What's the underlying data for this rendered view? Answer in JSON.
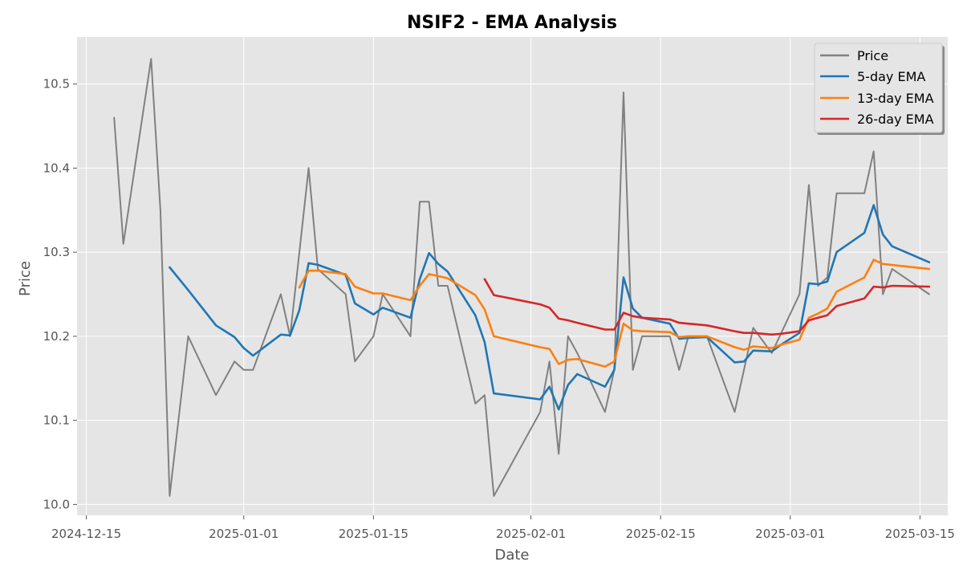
{
  "chart_data": {
    "type": "line",
    "title": "NSIF2 - EMA Analysis",
    "xlabel": "Date",
    "ylabel": "Price",
    "xlim": [
      "2024-12-14",
      "2025-03-18"
    ],
    "ylim": [
      9.987,
      10.556
    ],
    "grid": true,
    "legend_placement": "top-right",
    "x_ticks": [
      "2024-12-15",
      "2025-01-01",
      "2025-01-15",
      "2025-02-01",
      "2025-02-15",
      "2025-03-01",
      "2025-03-15"
    ],
    "y_ticks": [
      "10.0",
      "10.1",
      "10.2",
      "10.3",
      "10.4",
      "10.5"
    ],
    "series": [
      {
        "name": "Price",
        "color": "#808080",
        "points": [
          [
            "2024-12-18",
            10.46
          ],
          [
            "2024-12-19",
            10.31
          ],
          [
            "2024-12-22",
            10.53
          ],
          [
            "2024-12-23",
            10.35
          ],
          [
            "2024-12-24",
            10.01
          ],
          [
            "2024-12-26",
            10.2
          ],
          [
            "2024-12-29",
            10.13
          ],
          [
            "2024-12-31",
            10.17
          ],
          [
            "2025-01-01",
            10.16
          ],
          [
            "2025-01-02",
            10.16
          ],
          [
            "2025-01-05",
            10.25
          ],
          [
            "2025-01-06",
            10.2
          ],
          [
            "2025-01-08",
            10.4
          ],
          [
            "2025-01-09",
            10.28
          ],
          [
            "2025-01-12",
            10.25
          ],
          [
            "2025-01-13",
            10.17
          ],
          [
            "2025-01-15",
            10.2
          ],
          [
            "2025-01-16",
            10.25
          ],
          [
            "2025-01-19",
            10.2
          ],
          [
            "2025-01-20",
            10.36
          ],
          [
            "2025-01-21",
            10.36
          ],
          [
            "2025-01-22",
            10.26
          ],
          [
            "2025-01-23",
            10.26
          ],
          [
            "2025-01-26",
            10.12
          ],
          [
            "2025-01-27",
            10.13
          ],
          [
            "2025-01-28",
            10.01
          ],
          [
            "2025-02-02",
            10.11
          ],
          [
            "2025-02-03",
            10.17
          ],
          [
            "2025-02-04",
            10.06
          ],
          [
            "2025-02-05",
            10.2
          ],
          [
            "2025-02-06",
            10.18
          ],
          [
            "2025-02-09",
            10.11
          ],
          [
            "2025-02-10",
            10.16
          ],
          [
            "2025-02-11",
            10.49
          ],
          [
            "2025-02-12",
            10.16
          ],
          [
            "2025-02-13",
            10.2
          ],
          [
            "2025-02-16",
            10.2
          ],
          [
            "2025-02-17",
            10.16
          ],
          [
            "2025-02-18",
            10.2
          ],
          [
            "2025-02-20",
            10.2
          ],
          [
            "2025-02-23",
            10.11
          ],
          [
            "2025-02-25",
            10.21
          ],
          [
            "2025-02-27",
            10.18
          ],
          [
            "2025-03-02",
            10.25
          ],
          [
            "2025-03-03",
            10.38
          ],
          [
            "2025-03-04",
            10.26
          ],
          [
            "2025-03-05",
            10.27
          ],
          [
            "2025-03-06",
            10.37
          ],
          [
            "2025-03-09",
            10.37
          ],
          [
            "2025-03-10",
            10.42
          ],
          [
            "2025-03-11",
            10.25
          ],
          [
            "2025-03-12",
            10.28
          ],
          [
            "2025-03-16",
            10.25
          ]
        ]
      },
      {
        "name": "5-day EMA",
        "color": "#1f77b4",
        "points": [
          [
            "2024-12-24",
            10.282
          ],
          [
            "2024-12-26",
            10.255
          ],
          [
            "2024-12-29",
            10.213
          ],
          [
            "2024-12-31",
            10.199
          ],
          [
            "2025-01-01",
            10.186
          ],
          [
            "2025-01-02",
            10.177
          ],
          [
            "2025-01-05",
            10.202
          ],
          [
            "2025-01-06",
            10.201
          ],
          [
            "2025-01-07",
            10.231
          ],
          [
            "2025-01-08",
            10.287
          ],
          [
            "2025-01-09",
            10.285
          ],
          [
            "2025-01-12",
            10.273
          ],
          [
            "2025-01-13",
            10.239
          ],
          [
            "2025-01-15",
            10.226
          ],
          [
            "2025-01-16",
            10.234
          ],
          [
            "2025-01-19",
            10.222
          ],
          [
            "2025-01-20",
            10.268
          ],
          [
            "2025-01-21",
            10.299
          ],
          [
            "2025-01-22",
            10.286
          ],
          [
            "2025-01-23",
            10.277
          ],
          [
            "2025-01-26",
            10.225
          ],
          [
            "2025-01-27",
            10.193
          ],
          [
            "2025-01-28",
            10.132
          ],
          [
            "2025-02-02",
            10.125
          ],
          [
            "2025-02-03",
            10.14
          ],
          [
            "2025-02-04",
            10.113
          ],
          [
            "2025-02-05",
            10.142
          ],
          [
            "2025-02-06",
            10.155
          ],
          [
            "2025-02-09",
            10.14
          ],
          [
            "2025-02-10",
            10.16
          ],
          [
            "2025-02-11",
            10.27
          ],
          [
            "2025-02-12",
            10.233
          ],
          [
            "2025-02-13",
            10.222
          ],
          [
            "2025-02-16",
            10.215
          ],
          [
            "2025-02-17",
            10.197
          ],
          [
            "2025-02-18",
            10.198
          ],
          [
            "2025-02-20",
            10.199
          ],
          [
            "2025-02-23",
            10.169
          ],
          [
            "2025-02-24",
            10.17
          ],
          [
            "2025-02-25",
            10.183
          ],
          [
            "2025-02-27",
            10.182
          ],
          [
            "2025-02-28",
            10.19
          ],
          [
            "2025-03-02",
            10.204
          ],
          [
            "2025-03-03",
            10.263
          ],
          [
            "2025-03-04",
            10.262
          ],
          [
            "2025-03-05",
            10.265
          ],
          [
            "2025-03-06",
            10.3
          ],
          [
            "2025-03-09",
            10.323
          ],
          [
            "2025-03-10",
            10.356
          ],
          [
            "2025-03-11",
            10.321
          ],
          [
            "2025-03-12",
            10.307
          ],
          [
            "2025-03-16",
            10.288
          ]
        ]
      },
      {
        "name": "13-day EMA",
        "color": "#ff7f0e",
        "points": [
          [
            "2025-01-07",
            10.258
          ],
          [
            "2025-01-08",
            10.278
          ],
          [
            "2025-01-09",
            10.278
          ],
          [
            "2025-01-12",
            10.274
          ],
          [
            "2025-01-13",
            10.259
          ],
          [
            "2025-01-15",
            10.251
          ],
          [
            "2025-01-16",
            10.251
          ],
          [
            "2025-01-19",
            10.243
          ],
          [
            "2025-01-20",
            10.26
          ],
          [
            "2025-01-21",
            10.274
          ],
          [
            "2025-01-23",
            10.269
          ],
          [
            "2025-01-26",
            10.249
          ],
          [
            "2025-01-27",
            10.232
          ],
          [
            "2025-01-28",
            10.2
          ],
          [
            "2025-02-02",
            10.187
          ],
          [
            "2025-02-03",
            10.185
          ],
          [
            "2025-02-04",
            10.167
          ],
          [
            "2025-02-05",
            10.172
          ],
          [
            "2025-02-06",
            10.173
          ],
          [
            "2025-02-09",
            10.164
          ],
          [
            "2025-02-10",
            10.17
          ],
          [
            "2025-02-11",
            10.215
          ],
          [
            "2025-02-12",
            10.207
          ],
          [
            "2025-02-13",
            10.206
          ],
          [
            "2025-02-16",
            10.205
          ],
          [
            "2025-02-17",
            10.199
          ],
          [
            "2025-02-18",
            10.2
          ],
          [
            "2025-02-20",
            10.2
          ],
          [
            "2025-02-23",
            10.187
          ],
          [
            "2025-02-24",
            10.184
          ],
          [
            "2025-02-25",
            10.188
          ],
          [
            "2025-02-27",
            10.186
          ],
          [
            "2025-02-28",
            10.19
          ],
          [
            "2025-03-02",
            10.196
          ],
          [
            "2025-03-03",
            10.222
          ],
          [
            "2025-03-04",
            10.227
          ],
          [
            "2025-03-05",
            10.233
          ],
          [
            "2025-03-06",
            10.253
          ],
          [
            "2025-03-09",
            10.27
          ],
          [
            "2025-03-10",
            10.291
          ],
          [
            "2025-03-11",
            10.286
          ],
          [
            "2025-03-16",
            10.28
          ]
        ]
      },
      {
        "name": "26-day EMA",
        "color": "#d62728",
        "points": [
          [
            "2025-01-27",
            10.268
          ],
          [
            "2025-01-28",
            10.249
          ],
          [
            "2025-02-02",
            10.238
          ],
          [
            "2025-02-03",
            10.234
          ],
          [
            "2025-02-04",
            10.221
          ],
          [
            "2025-02-05",
            10.219
          ],
          [
            "2025-02-06",
            10.216
          ],
          [
            "2025-02-09",
            10.208
          ],
          [
            "2025-02-10",
            10.208
          ],
          [
            "2025-02-11",
            10.228
          ],
          [
            "2025-02-12",
            10.224
          ],
          [
            "2025-02-13",
            10.222
          ],
          [
            "2025-02-16",
            10.22
          ],
          [
            "2025-02-17",
            10.216
          ],
          [
            "2025-02-18",
            10.215
          ],
          [
            "2025-02-20",
            10.213
          ],
          [
            "2025-02-23",
            10.206
          ],
          [
            "2025-02-24",
            10.204
          ],
          [
            "2025-02-25",
            10.204
          ],
          [
            "2025-02-27",
            10.202
          ],
          [
            "2025-02-28",
            10.203
          ],
          [
            "2025-03-02",
            10.206
          ],
          [
            "2025-03-03",
            10.219
          ],
          [
            "2025-03-04",
            10.222
          ],
          [
            "2025-03-05",
            10.225
          ],
          [
            "2025-03-06",
            10.236
          ],
          [
            "2025-03-09",
            10.245
          ],
          [
            "2025-03-10",
            10.259
          ],
          [
            "2025-03-11",
            10.258
          ],
          [
            "2025-03-12",
            10.26
          ],
          [
            "2025-03-16",
            10.259
          ]
        ]
      }
    ]
  }
}
